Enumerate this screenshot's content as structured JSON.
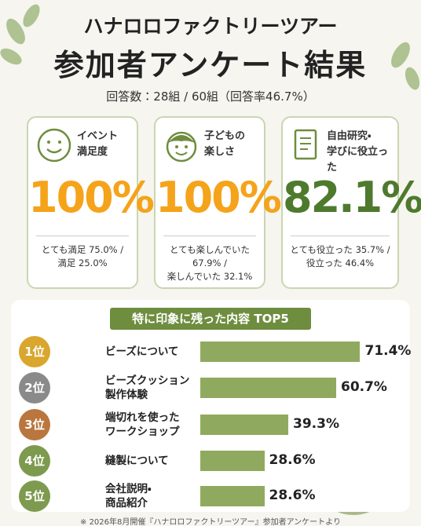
{
  "header": {
    "subtitle": "ハナロロファクトリーツアー",
    "title": "参加者アンケート結果",
    "response": "回答数：28組 / 60組（回答率46.7%）"
  },
  "cards": [
    {
      "label": [
        "イベント",
        "満足度"
      ],
      "value": "100%",
      "detail": [
        "とても満足 75.0% /",
        "満足 25.0%"
      ]
    },
    {
      "label": [
        "子どもの",
        "楽しさ"
      ],
      "value": "100%",
      "detail": [
        "とても楽しんでいた",
        "67.9% /",
        "楽しんでいた 32.1%"
      ]
    },
    {
      "label": [
        "自由研究・",
        "学びに役立った"
      ],
      "value": "82.1%",
      "detail": [
        "とても役立った 35.7% /",
        "役立った 46.4%"
      ]
    }
  ],
  "ranking": {
    "title": "特に印象に残った内容 TOP5",
    "ranks": [
      "1位",
      "2位",
      "3位",
      "4位",
      "5位"
    ],
    "items": [
      [
        "ビーズについて"
      ],
      [
        "ビーズクッション",
        "製作体験"
      ],
      [
        "端切れを使った",
        "ワークショップ"
      ],
      [
        "縫製について"
      ],
      [
        "会社説明・",
        "商品紹介"
      ]
    ],
    "values": [
      71.4,
      60.7,
      39.3,
      28.6,
      28.6
    ],
    "value_labels": [
      "71.4%",
      "60.7%",
      "39.3%",
      "28.6%",
      "28.6%"
    ]
  },
  "footnote": "※ 2026年8月開催『ハナロロファクトリーツアー』参加者アンケートより"
}
